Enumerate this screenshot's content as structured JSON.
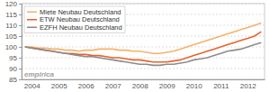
{
  "chart_data": {
    "type": "line",
    "categories": [
      null,
      "2004",
      null,
      null,
      null,
      "2005",
      null,
      null,
      null,
      "2006",
      null,
      null,
      null,
      "2007",
      null,
      null,
      null,
      "2008",
      null,
      null,
      null,
      "2009",
      null,
      null,
      null,
      "2010",
      null,
      null,
      null,
      "2011",
      null,
      null,
      null,
      "2012",
      null,
      null
    ],
    "series": [
      {
        "name": "Miete Neubau Deutschland",
        "color": "#f5b26b",
        "values": [
          100,
          100,
          99.5,
          99.5,
          99,
          99,
          98.5,
          98.5,
          98,
          98.5,
          98.5,
          99,
          99,
          99,
          98.5,
          98.5,
          98,
          98,
          97.5,
          97,
          97,
          97.5,
          98,
          99,
          100,
          101,
          102,
          103,
          104,
          105,
          106,
          107,
          108,
          109,
          110,
          111
        ]
      },
      {
        "name": "ETW Neubau Deutschland",
        "color": "#e8632a",
        "values": [
          100,
          99.5,
          99,
          98.5,
          98,
          97.5,
          97,
          97,
          96.5,
          96.5,
          96,
          96,
          95.5,
          95,
          95,
          94.5,
          94,
          94,
          93.5,
          93,
          93,
          93,
          93.5,
          94,
          95,
          96,
          97,
          98,
          99,
          100,
          101,
          102,
          103,
          104,
          105,
          107
        ]
      },
      {
        "name": "EZFH Neubau Deutschland",
        "color": "#8c8c8c",
        "values": [
          100,
          99.5,
          99,
          98.5,
          98,
          97.5,
          97,
          96.5,
          96,
          95.5,
          95.5,
          95,
          94.5,
          94,
          93.5,
          93,
          92.5,
          92,
          92,
          91.5,
          91.5,
          92,
          92,
          92.5,
          93,
          94,
          94.5,
          95,
          96,
          97,
          98,
          98.5,
          99,
          100,
          101,
          102
        ]
      }
    ],
    "ylim": [
      85,
      120
    ],
    "yticks": [
      85,
      90,
      95,
      100,
      105,
      110,
      115,
      120
    ],
    "grid": true,
    "legend": "upper left",
    "annotations": [
      "empirica"
    ]
  }
}
